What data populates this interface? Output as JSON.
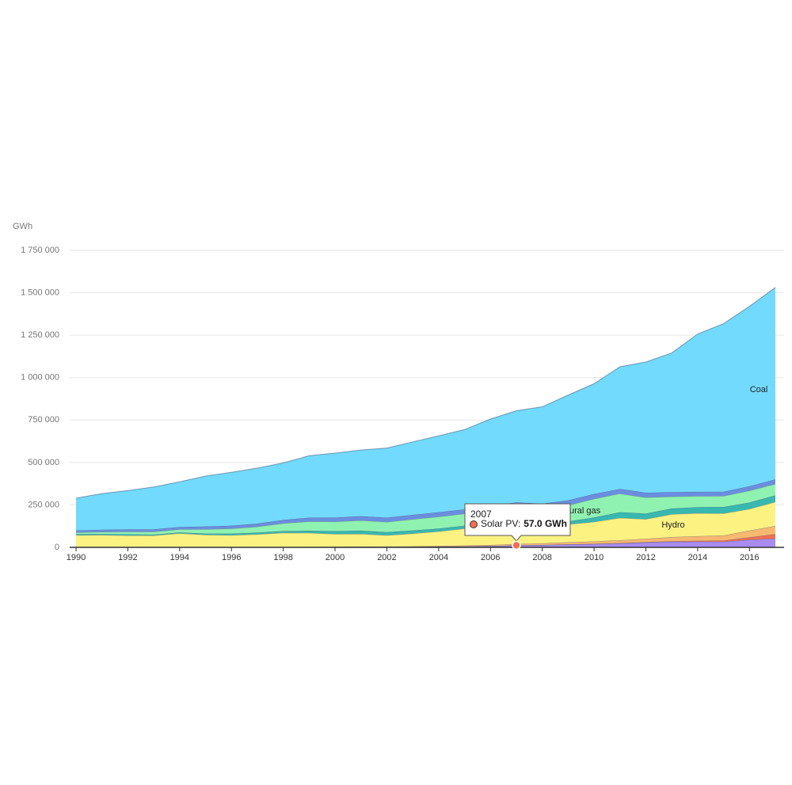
{
  "chart_data": {
    "type": "stacked_area",
    "y_label": "GWh",
    "x": [
      1990,
      1991,
      1992,
      1993,
      1994,
      1995,
      1996,
      1997,
      1998,
      1999,
      2000,
      2001,
      2002,
      2003,
      2004,
      2005,
      2006,
      2007,
      2008,
      2009,
      2010,
      2011,
      2012,
      2013,
      2014,
      2015,
      2016,
      2017
    ],
    "xlim": [
      1990,
      2017
    ],
    "xticks": [
      1990,
      1992,
      1994,
      1996,
      1998,
      2000,
      2002,
      2004,
      2006,
      2008,
      2010,
      2012,
      2014,
      2016
    ],
    "ylim": [
      0,
      1750000
    ],
    "yticks": [
      0,
      {
        "value": 250000,
        "label": "250 000"
      },
      {
        "value": 500000,
        "label": "500 000"
      },
      {
        "value": 750000,
        "label": "750 000"
      },
      {
        "value": 1000000,
        "label": "1 000 000"
      },
      {
        "value": 1250000,
        "label": "1 250 000"
      },
      {
        "value": 1500000,
        "label": "1 500 000"
      },
      {
        "value": 1750000,
        "label": "1 750 000"
      }
    ],
    "grid": true,
    "series": [
      {
        "color": "#a98cf0",
        "values": [
          0,
          0,
          0,
          0,
          0,
          500,
          1000,
          1000,
          1000,
          1500,
          1500,
          2000,
          2000,
          3000,
          5000,
          6000,
          8000,
          12000,
          14000,
          18000,
          20000,
          24000,
          29000,
          33000,
          34000,
          33000,
          45000,
          52000
        ]
      },
      {
        "color": "#f07050",
        "values": [
          0,
          0,
          0,
          0,
          0,
          0,
          0,
          0,
          0,
          0,
          10,
          12,
          15,
          20,
          25,
          30,
          40,
          57,
          100,
          120,
          200,
          1000,
          2000,
          3400,
          5000,
          7000,
          14000,
          26000
        ]
      },
      {
        "color": "#f8b870",
        "values": [
          0,
          0,
          0,
          0,
          0,
          500,
          1000,
          1000,
          1500,
          1500,
          2000,
          2500,
          3000,
          3500,
          4000,
          5000,
          6000,
          8000,
          10000,
          12000,
          15000,
          17000,
          20000,
          24000,
          27000,
          30000,
          40000,
          48000
        ]
      },
      {
        "name": "Hydro",
        "color": "#fcf282",
        "values": [
          72000,
          73000,
          70000,
          70000,
          83000,
          73000,
          70000,
          75000,
          83000,
          82000,
          75000,
          75000,
          66000,
          75000,
          85000,
          100000,
          113000,
          120000,
          115000,
          105000,
          115000,
          132000,
          115000,
          135000,
          135000,
          130000,
          127000,
          142000
        ]
      },
      {
        "color": "#38b8b0",
        "values": [
          6000,
          6000,
          7000,
          5000,
          5000,
          7000,
          9000,
          10000,
          11000,
          13000,
          17000,
          19000,
          19000,
          18000,
          17000,
          17000,
          17000,
          17000,
          15000,
          18000,
          26000,
          33000,
          33000,
          34000,
          36000,
          38000,
          38000,
          38000
        ]
      },
      {
        "name": "Natural gas",
        "color": "#90f2b0",
        "values": [
          10000,
          12000,
          15000,
          17000,
          18000,
          26000,
          30000,
          35000,
          45000,
          55000,
          56000,
          60000,
          60000,
          66000,
          70000,
          70000,
          75000,
          80000,
          75000,
          95000,
          110000,
          110000,
          95000,
          70000,
          65000,
          65000,
          70000,
          68000
        ]
      },
      {
        "color": "#6b8ee0",
        "values": [
          12000,
          13000,
          14000,
          14000,
          14000,
          16000,
          17000,
          18000,
          20000,
          22000,
          24000,
          25000,
          25000,
          26000,
          26000,
          26000,
          27000,
          28000,
          29000,
          29000,
          28000,
          27000,
          28000,
          26000,
          25000,
          25000,
          26000,
          27000
        ]
      },
      {
        "name": "Coal",
        "color": "#72dafc",
        "values": [
          190000,
          213000,
          229000,
          250000,
          266000,
          297000,
          314000,
          327000,
          336000,
          365000,
          380000,
          390000,
          410000,
          430000,
          450000,
          470000,
          510000,
          540000,
          570000,
          620000,
          650000,
          720000,
          770000,
          820000,
          930000,
          990000,
          1060000,
          1130000
        ]
      }
    ],
    "tooltip": {
      "title": "2007",
      "label": "Solar PV:",
      "value_label": "57.0 GWh"
    }
  }
}
